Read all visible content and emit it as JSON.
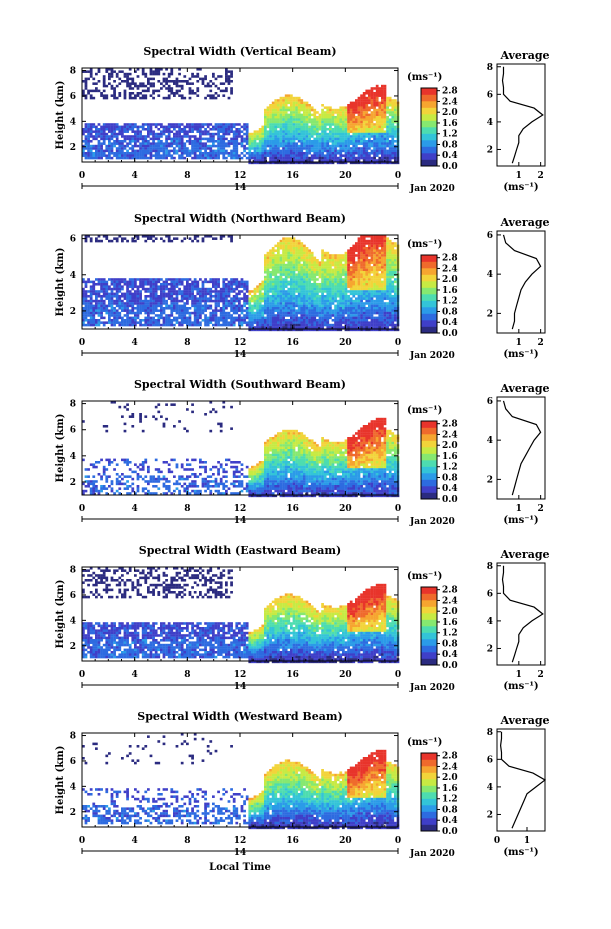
{
  "figure": {
    "xlabel": "Local Time",
    "ylabel": "Height (km)",
    "date_label": "Jan 2020",
    "day_label": "14",
    "unit_label": "(ms⁻¹)",
    "avg_title": "Average",
    "avg_xlabel": "(ms⁻¹)"
  },
  "colors": {
    "colormap": [
      "#2b2b80",
      "#3f3fc8",
      "#2d6be0",
      "#2b9be8",
      "#33c4d8",
      "#4ddcb0",
      "#86e870",
      "#c7ea43",
      "#f2d43a",
      "#f6a530",
      "#ef6a2c",
      "#e8342b"
    ]
  },
  "chart_data": [
    {
      "type": "heatmap",
      "title": "Spectral Width (Vertical Beam)",
      "xlabel": "",
      "ylabel": "Height (km)",
      "x_ticks": [
        "0",
        "4",
        "8",
        "12",
        "16",
        "20",
        "0"
      ],
      "xlim": [
        0,
        24
      ],
      "y_ticks": [
        "2",
        "4",
        "6",
        "8"
      ],
      "ylim": [
        0.8,
        8.2
      ],
      "colorbar": {
        "ticks": [
          "0.0",
          "0.4",
          "0.8",
          "1.2",
          "1.6",
          "2.0",
          "2.4",
          "2.8"
        ],
        "range": [
          0.0,
          2.9
        ]
      },
      "profile": {
        "title": "Average",
        "x_ticks": [
          "1",
          "2"
        ],
        "xlim": [
          0,
          2.2
        ],
        "y_ticks": [
          "2",
          "4",
          "6",
          "8"
        ],
        "ylim": [
          0.8,
          8.2
        ],
        "heights": [
          1.0,
          1.5,
          2.0,
          2.5,
          3.0,
          3.5,
          4.0,
          4.5,
          5.0,
          5.5,
          6.0,
          6.5,
          7.0,
          7.5,
          8.0
        ],
        "values": [
          0.7,
          0.8,
          0.9,
          1.0,
          1.0,
          1.2,
          1.6,
          2.1,
          1.7,
          0.6,
          0.3,
          0.3,
          0.25,
          0.3,
          0.3
        ]
      }
    },
    {
      "type": "heatmap",
      "title": "Spectral Width (Northward Beam)",
      "xlabel": "",
      "ylabel": "Height (km)",
      "x_ticks": [
        "0",
        "4",
        "8",
        "12",
        "16",
        "20",
        "0"
      ],
      "xlim": [
        0,
        24
      ],
      "y_ticks": [
        "2",
        "4",
        "6"
      ],
      "ylim": [
        1.0,
        6.2
      ],
      "colorbar": {
        "ticks": [
          "0.0",
          "0.4",
          "0.8",
          "1.2",
          "1.6",
          "2.0",
          "2.4",
          "2.8"
        ],
        "range": [
          0.0,
          2.9
        ]
      },
      "profile": {
        "title": "Average",
        "x_ticks": [
          "1",
          "2"
        ],
        "xlim": [
          0,
          2.2
        ],
        "y_ticks": [
          "2",
          "4",
          "6"
        ],
        "ylim": [
          1.0,
          6.2
        ],
        "heights": [
          1.2,
          1.6,
          2.0,
          2.4,
          2.8,
          3.2,
          3.6,
          4.0,
          4.4,
          4.8,
          5.2,
          5.6,
          6.0
        ],
        "values": [
          0.7,
          0.8,
          0.8,
          0.9,
          1.0,
          1.1,
          1.3,
          1.6,
          2.0,
          1.8,
          0.8,
          0.4,
          0.3
        ]
      }
    },
    {
      "type": "heatmap",
      "title": "Spectral Width (Southward Beam)",
      "xlabel": "",
      "ylabel": "Height (km)",
      "x_ticks": [
        "0",
        "4",
        "8",
        "12",
        "16",
        "20",
        "0"
      ],
      "xlim": [
        0,
        24
      ],
      "y_ticks": [
        "2",
        "4",
        "6",
        "8"
      ],
      "ylim": [
        1.0,
        8.2
      ],
      "colorbar": {
        "ticks": [
          "0.0",
          "0.4",
          "0.8",
          "1.2",
          "1.6",
          "2.0",
          "2.4",
          "2.8"
        ],
        "range": [
          0.0,
          2.9
        ]
      },
      "profile": {
        "title": "Average",
        "x_ticks": [
          "1",
          "2"
        ],
        "xlim": [
          0,
          2.2
        ],
        "y_ticks": [
          "2",
          "4",
          "6"
        ],
        "ylim": [
          1.0,
          6.2
        ],
        "heights": [
          1.2,
          1.6,
          2.0,
          2.4,
          2.8,
          3.2,
          3.6,
          4.0,
          4.4,
          4.8,
          5.2,
          5.6,
          6.0
        ],
        "values": [
          0.7,
          0.8,
          0.9,
          1.0,
          1.1,
          1.3,
          1.5,
          1.7,
          2.0,
          1.8,
          0.7,
          0.4,
          0.3
        ]
      }
    },
    {
      "type": "heatmap",
      "title": "Spectral Width (Eastward Beam)",
      "xlabel": "",
      "ylabel": "Height (km)",
      "x_ticks": [
        "0",
        "4",
        "8",
        "12",
        "16",
        "20",
        "0"
      ],
      "xlim": [
        0,
        24
      ],
      "y_ticks": [
        "2",
        "4",
        "6",
        "8"
      ],
      "ylim": [
        0.8,
        8.2
      ],
      "colorbar": {
        "ticks": [
          "0.0",
          "0.4",
          "0.8",
          "1.2",
          "1.6",
          "2.0",
          "2.4",
          "2.8"
        ],
        "range": [
          0.0,
          2.9
        ]
      },
      "profile": {
        "title": "Average",
        "x_ticks": [
          "1",
          "2"
        ],
        "xlim": [
          0,
          2.2
        ],
        "y_ticks": [
          "2",
          "4",
          "6",
          "8"
        ],
        "ylim": [
          0.8,
          8.2
        ],
        "heights": [
          1.0,
          1.5,
          2.0,
          2.5,
          3.0,
          3.5,
          4.0,
          4.5,
          5.0,
          5.5,
          6.0,
          6.5,
          7.0,
          7.5,
          8.0
        ],
        "values": [
          0.7,
          0.8,
          0.9,
          1.0,
          1.0,
          1.2,
          1.6,
          2.1,
          1.7,
          0.6,
          0.3,
          0.3,
          0.25,
          0.3,
          0.3
        ]
      }
    },
    {
      "type": "heatmap",
      "title": "Spectral Width (Westward Beam)",
      "xlabel": "Local Time",
      "ylabel": "Height (km)",
      "x_ticks": [
        "0",
        "4",
        "8",
        "12",
        "16",
        "20",
        "0"
      ],
      "xlim": [
        0,
        24
      ],
      "y_ticks": [
        "2",
        "4",
        "6",
        "8"
      ],
      "ylim": [
        0.8,
        8.2
      ],
      "colorbar": {
        "ticks": [
          "0.0",
          "0.4",
          "0.8",
          "1.2",
          "1.6",
          "2.0",
          "2.4",
          "2.8"
        ],
        "range": [
          0.0,
          2.9
        ]
      },
      "profile": {
        "title": "Average",
        "x_ticks": [
          "0",
          "1"
        ],
        "xlim": [
          0,
          1.6
        ],
        "y_ticks": [
          "2",
          "4",
          "6",
          "8"
        ],
        "ylim": [
          0.8,
          8.2
        ],
        "heights": [
          1.0,
          1.5,
          2.0,
          2.5,
          3.0,
          3.5,
          4.0,
          4.5,
          5.0,
          5.5,
          6.0,
          6.5,
          7.0,
          7.5,
          8.0
        ],
        "values": [
          0.5,
          0.6,
          0.7,
          0.8,
          0.9,
          1.0,
          1.3,
          1.6,
          1.2,
          0.4,
          0.15,
          0.15,
          0.12,
          0.15,
          0.15
        ]
      }
    }
  ]
}
